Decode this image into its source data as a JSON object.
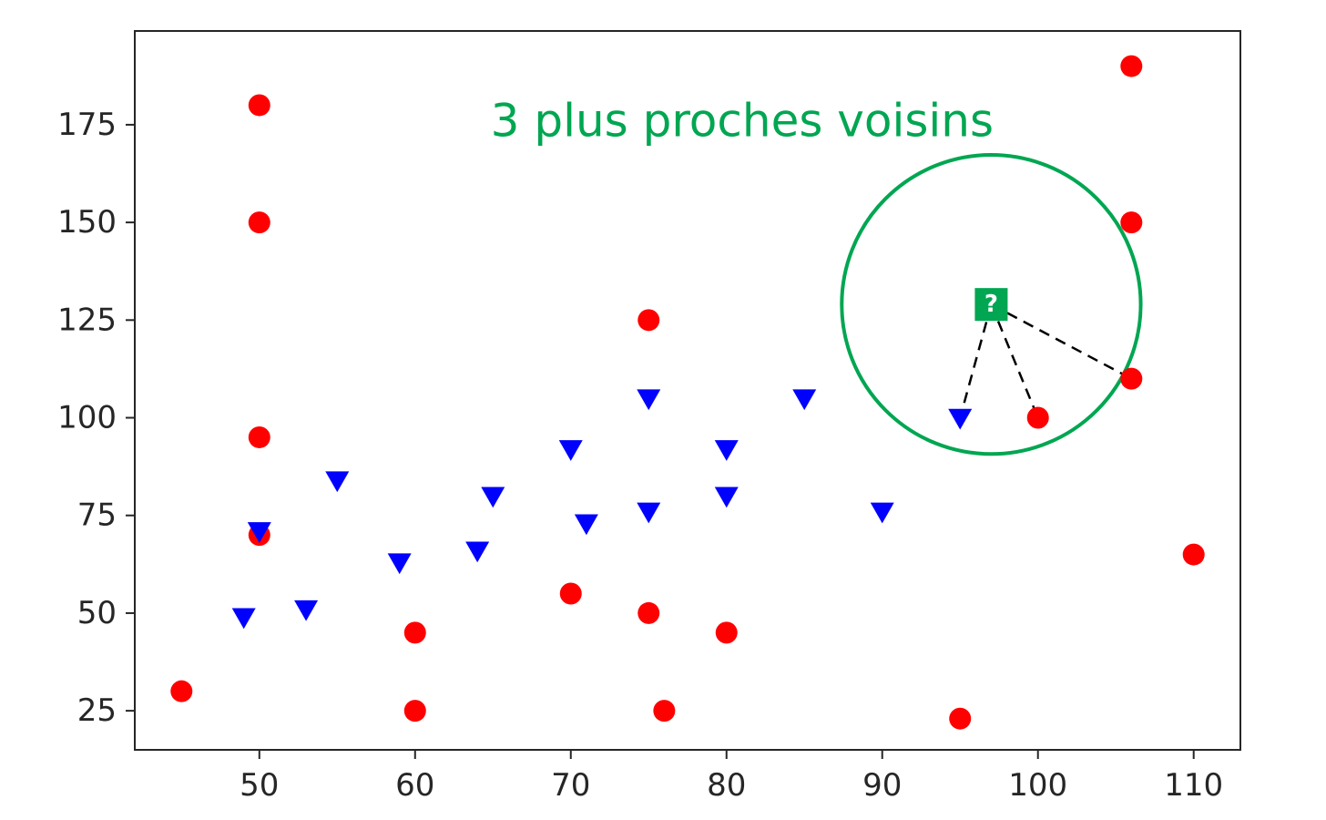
{
  "chart_data": {
    "type": "scatter",
    "title": "",
    "xlabel": "",
    "ylabel": "",
    "xlim": [
      42,
      113
    ],
    "ylim": [
      15,
      199
    ],
    "xticks": [
      50,
      60,
      70,
      80,
      90,
      100,
      110
    ],
    "yticks": [
      25,
      50,
      75,
      100,
      125,
      150,
      175
    ],
    "grid": false,
    "series": [
      {
        "marker": "circle",
        "color": "#ff0000",
        "points": [
          [
            45,
            30
          ],
          [
            50,
            180
          ],
          [
            50,
            150
          ],
          [
            50,
            95
          ],
          [
            50,
            70
          ],
          [
            60,
            45
          ],
          [
            60,
            25
          ],
          [
            70,
            55
          ],
          [
            75,
            125
          ],
          [
            75,
            50
          ],
          [
            76,
            25
          ],
          [
            80,
            45
          ],
          [
            95,
            23
          ],
          [
            100,
            100
          ],
          [
            106,
            190
          ],
          [
            106,
            150
          ],
          [
            106,
            110
          ],
          [
            110,
            65
          ]
        ]
      },
      {
        "marker": "triangle-down",
        "color": "#0000ff",
        "points": [
          [
            49,
            49
          ],
          [
            50,
            71
          ],
          [
            53,
            51
          ],
          [
            55,
            84
          ],
          [
            59,
            63
          ],
          [
            64,
            66
          ],
          [
            65,
            80
          ],
          [
            70,
            92
          ],
          [
            71,
            73
          ],
          [
            75,
            105
          ],
          [
            75,
            76
          ],
          [
            80,
            92
          ],
          [
            80,
            80
          ],
          [
            85,
            105
          ],
          [
            90,
            76
          ],
          [
            95,
            100
          ]
        ]
      }
    ],
    "query_point": {
      "x": 97,
      "y": 129,
      "label": "?",
      "color": "#00a651"
    },
    "neighbor_lines": [
      {
        "from": [
          97,
          129
        ],
        "to": [
          95,
          100
        ]
      },
      {
        "from": [
          97,
          129
        ],
        "to": [
          100,
          100
        ]
      },
      {
        "from": [
          97,
          129
        ],
        "to": [
          106,
          110
        ]
      }
    ],
    "neighbor_circle": {
      "cx": 97,
      "cy": 129,
      "radius_x_units": 9.6
    },
    "annotation": {
      "text": "3 plus proches voisins",
      "x": 81,
      "y": 176,
      "color": "#00a651"
    }
  }
}
